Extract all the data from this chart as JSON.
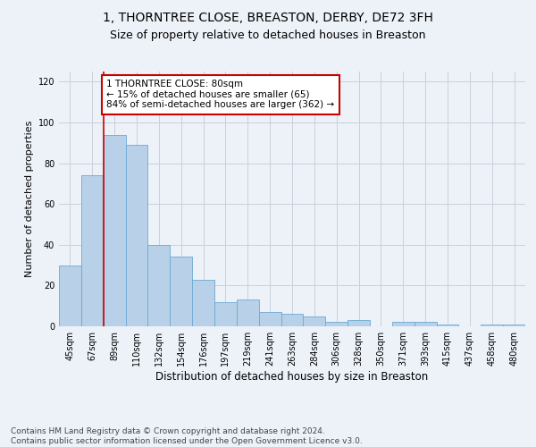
{
  "title_line1": "1, THORNTREE CLOSE, BREASTON, DERBY, DE72 3FH",
  "title_line2": "Size of property relative to detached houses in Breaston",
  "xlabel": "Distribution of detached houses by size in Breaston",
  "ylabel": "Number of detached properties",
  "footer_line1": "Contains HM Land Registry data © Crown copyright and database right 2024.",
  "footer_line2": "Contains public sector information licensed under the Open Government Licence v3.0.",
  "bin_labels": [
    "45sqm",
    "67sqm",
    "89sqm",
    "110sqm",
    "132sqm",
    "154sqm",
    "176sqm",
    "197sqm",
    "219sqm",
    "241sqm",
    "263sqm",
    "284sqm",
    "306sqm",
    "328sqm",
    "350sqm",
    "371sqm",
    "393sqm",
    "415sqm",
    "437sqm",
    "458sqm",
    "480sqm"
  ],
  "bar_values": [
    30,
    74,
    94,
    89,
    40,
    34,
    23,
    12,
    13,
    7,
    6,
    5,
    2,
    3,
    0,
    2,
    2,
    1,
    0,
    1,
    1
  ],
  "bar_color": "#b8d0e8",
  "bar_edge_color": "#6aaad4",
  "vline_x": 1.5,
  "annotation_text": "1 THORNTREE CLOSE: 80sqm\n← 15% of detached houses are smaller (65)\n84% of semi-detached houses are larger (362) →",
  "annotation_box_color": "#ffffff",
  "annotation_box_edge": "#cc0000",
  "vline_color": "#cc0000",
  "ylim": [
    0,
    125
  ],
  "yticks": [
    0,
    20,
    40,
    60,
    80,
    100,
    120
  ],
  "grid_color": "#c8d0dc",
  "background_color": "#edf2f9",
  "title1_fontsize": 10,
  "title2_fontsize": 9,
  "xlabel_fontsize": 8.5,
  "ylabel_fontsize": 8,
  "tick_fontsize": 7,
  "footer_fontsize": 6.5,
  "annot_fontsize": 7.5
}
